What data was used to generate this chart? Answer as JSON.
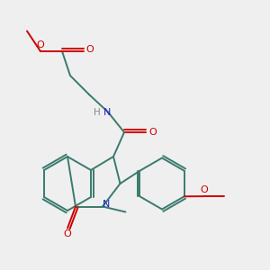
{
  "bg_color": "#efefef",
  "bond_color": "#3a7a6e",
  "atom_colors": {
    "O": "#cc0000",
    "N": "#2222cc",
    "H": "#888888",
    "C": "#3a7a6e"
  },
  "lw": 1.4
}
